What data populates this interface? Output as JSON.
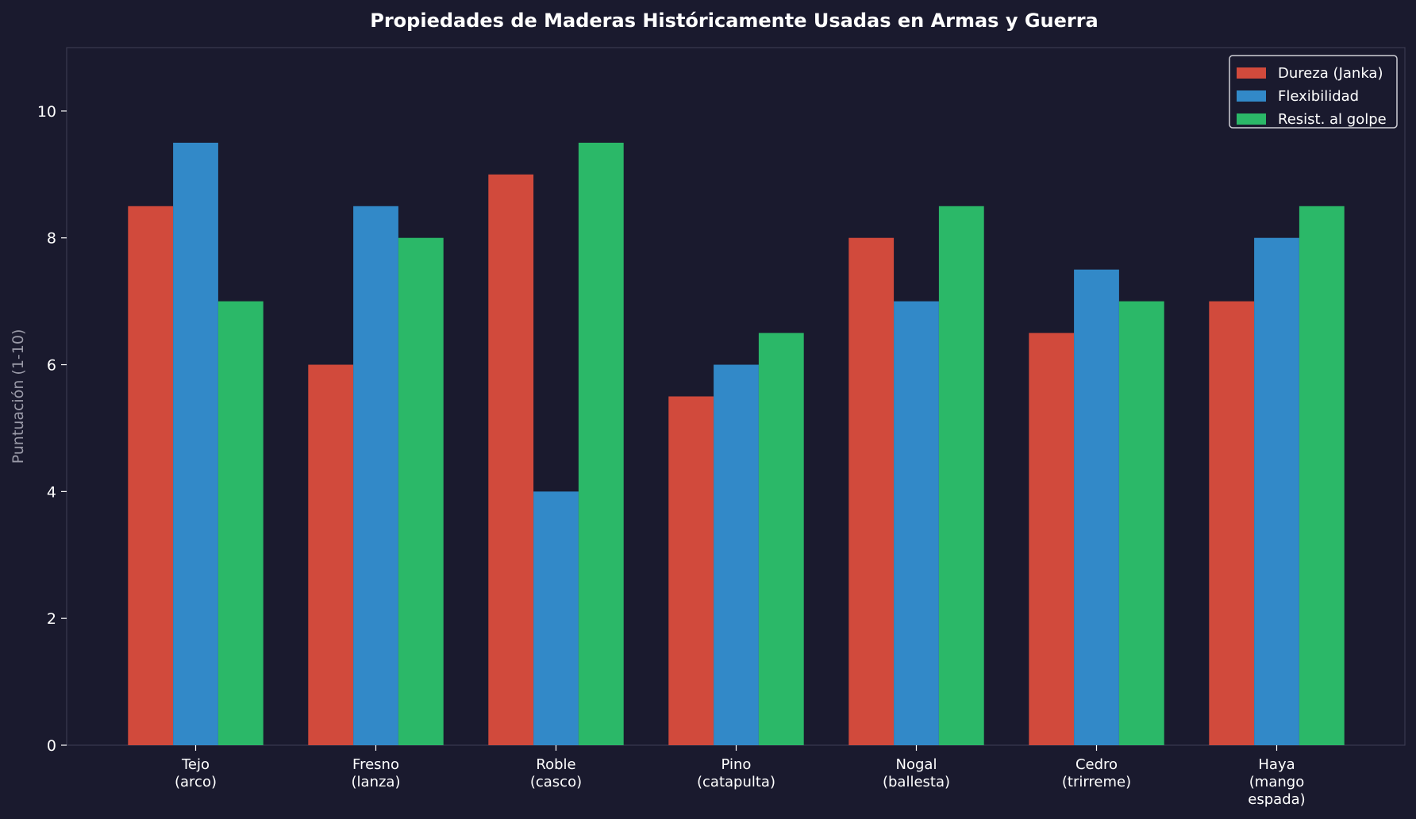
{
  "chart_data": {
    "type": "bar",
    "title": "Propiedades de Maderas Históricamente Usadas en Armas y Guerra",
    "xlabel": "",
    "ylabel": "Puntuación (1-10)",
    "ylim": [
      0,
      11
    ],
    "yticks": [
      0,
      2,
      4,
      6,
      8,
      10
    ],
    "grid": false,
    "legend_position": "top-right",
    "categories": [
      [
        "Tejo",
        "(arco)"
      ],
      [
        "Fresno",
        "(lanza)"
      ],
      [
        "Roble",
        "(casco)"
      ],
      [
        "Pino",
        "(catapulta)"
      ],
      [
        "Nogal",
        "(ballesta)"
      ],
      [
        "Cedro",
        "(trirreme)"
      ],
      [
        "Haya",
        "(mango",
        "espada)"
      ]
    ],
    "series": [
      {
        "name": "Dureza (Janka)",
        "color": "#d14a3c",
        "values": [
          8.5,
          6,
          9,
          5.5,
          8,
          6.5,
          7
        ]
      },
      {
        "name": "Flexibilidad",
        "color": "#3289c8",
        "values": [
          9.5,
          8.5,
          4,
          6,
          7,
          7.5,
          8
        ]
      },
      {
        "name": "Resist. al golpe",
        "color": "#2bb868",
        "values": [
          7,
          8,
          9.5,
          6.5,
          8.5,
          7,
          8.5
        ]
      }
    ],
    "colors": {
      "background": "#1a1a2e",
      "axes_edge": "#3a3a50",
      "text": "#ffffff",
      "ylabel_text": "#9a9aa8",
      "legend_bg": "#1a1a2e",
      "legend_edge": "#cfcfd6"
    }
  }
}
